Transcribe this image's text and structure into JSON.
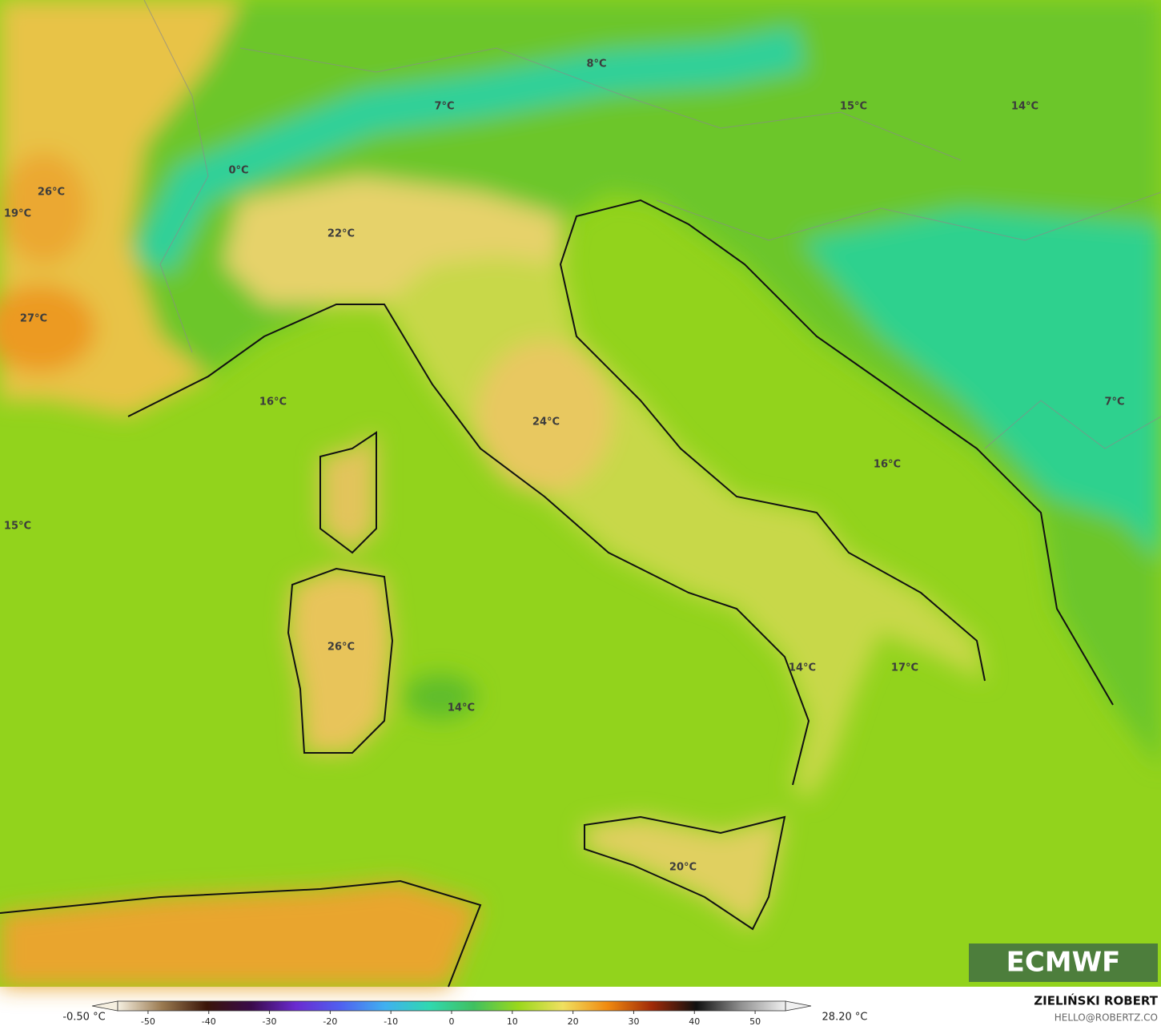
{
  "map": {
    "temperature_labels": [
      "8°C",
      "7°C",
      "15°C",
      "14°C",
      "0°C",
      "26°C",
      "19°C",
      "22°C",
      "27°C",
      "16°C",
      "24°C",
      "15°C",
      "16°C",
      "7°C",
      "26°C",
      "14°C",
      "14°C",
      "17°C",
      "20°C"
    ],
    "logo": "ECMWF"
  },
  "colorbar": {
    "min_label": "-0.50 °C",
    "max_label": "28.20 °C",
    "lim": [
      -55,
      55
    ],
    "ticks": [
      -50,
      -40,
      -30,
      -20,
      -10,
      0,
      10,
      20,
      30,
      40,
      50
    ],
    "colors": [
      "#f5efe0",
      "#9a7a50",
      "#3a1408",
      "#3a0a4a",
      "#6a2ad0",
      "#5060f0",
      "#40b0f0",
      "#30d8b0",
      "#40c060",
      "#9ad81c",
      "#f0e060",
      "#f08a10",
      "#a02a08",
      "#101010",
      "#909090",
      "#f0f0f0"
    ]
  },
  "credit": {
    "author": "ZIELIŃSKI ROBERT",
    "contact": "HELLO@ROBERTZ.CO"
  }
}
